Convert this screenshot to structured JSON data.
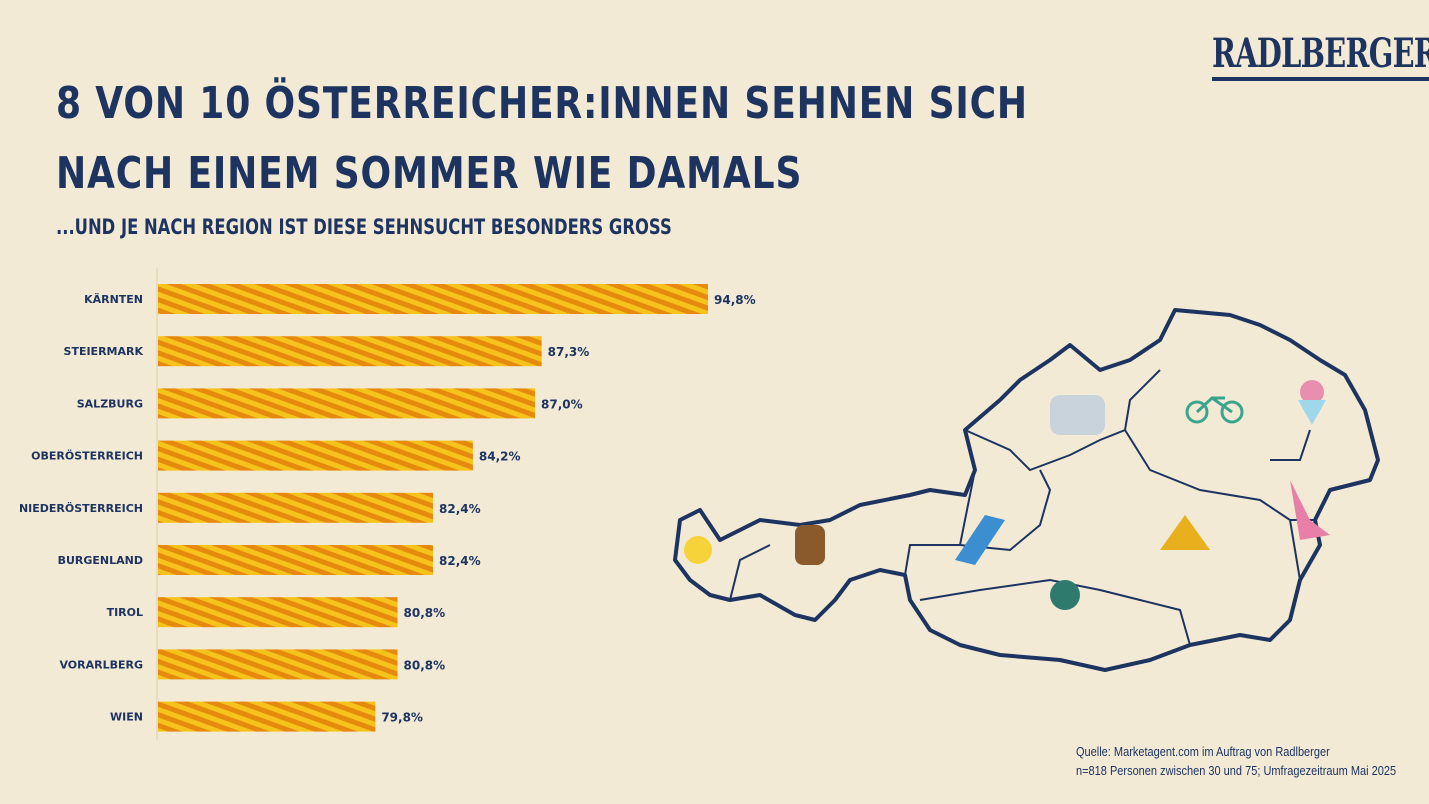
{
  "title_line1": "8 VON 10 ÖSTERREICHER:INNEN SEHNEN SICH",
  "title_line2": "NACH EINEM SOMMER WIE DAMALS",
  "subtitle": "...UND JE NACH REGION IST DIESE SEHNSUCHT BESONDERS GROSS",
  "logo": "RADLBERGER",
  "source_line1": "Quelle: Marketagent.com im Auftrag von Radlberger",
  "source_line2": "n=818 Personen zwischen 30 und 75; Umfragezeitraum Mai 2025",
  "colors": {
    "navy": "#1d3461",
    "bar_yellow": "#f6c21c",
    "bar_orange": "#e58a0c",
    "background": "#f3ead6"
  },
  "chart_data": {
    "type": "bar",
    "orientation": "horizontal",
    "categories": [
      "KÄRNTEN",
      "STEIERMARK",
      "SALZBURG",
      "OBERÖSTERREICH",
      "NIEDERÖSTERREICH",
      "BURGENLAND",
      "TIROL",
      "VORARLBERG",
      "WIEN"
    ],
    "values": [
      94.8,
      87.3,
      87.0,
      84.2,
      82.4,
      82.4,
      80.8,
      80.8,
      79.8
    ],
    "value_labels": [
      "94,8%",
      "87,3%",
      "87,0%",
      "84,2%",
      "82,4%",
      "82,4%",
      "80,8%",
      "80,8%",
      "79,8%"
    ],
    "unit": "%",
    "xlim": [
      70,
      100
    ]
  }
}
